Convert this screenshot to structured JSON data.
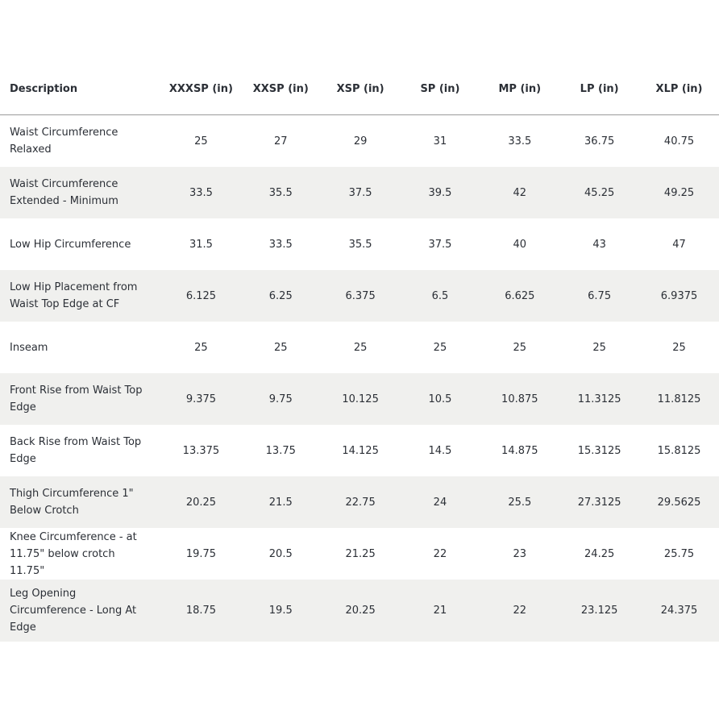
{
  "table": {
    "header": [
      "Description",
      "XXXSP (in)",
      "XXSP (in)",
      "XSP (in)",
      "SP (in)",
      "MP (in)",
      "LP (in)",
      "XLP (in)"
    ],
    "rows": [
      [
        "Waist Circumference Relaxed",
        "25",
        "27",
        "29",
        "31",
        "33.5",
        "36.75",
        "40.75"
      ],
      [
        "Waist Circumference Extended - Minimum",
        "33.5",
        "35.5",
        "37.5",
        "39.5",
        "42",
        "45.25",
        "49.25"
      ],
      [
        "Low Hip Circumference",
        "31.5",
        "33.5",
        "35.5",
        "37.5",
        "40",
        "43",
        "47"
      ],
      [
        "Low Hip Placement from Waist Top Edge at CF",
        "6.125",
        "6.25",
        "6.375",
        "6.5",
        "6.625",
        "6.75",
        "6.9375"
      ],
      [
        "Inseam",
        "25",
        "25",
        "25",
        "25",
        "25",
        "25",
        "25"
      ],
      [
        "Front Rise from Waist Top Edge",
        "9.375",
        "9.75",
        "10.125",
        "10.5",
        "10.875",
        "11.3125",
        "11.8125"
      ],
      [
        "Back Rise from Waist Top Edge",
        "13.375",
        "13.75",
        "14.125",
        "14.5",
        "14.875",
        "15.3125",
        "15.8125"
      ],
      [
        "Thigh Circumference 1\" Below Crotch",
        "20.25",
        "21.5",
        "22.75",
        "24",
        "25.5",
        "27.3125",
        "29.5625"
      ],
      [
        "Knee Circumference - at 11.75\" below crotch 11.75\"",
        "19.75",
        "20.5",
        "21.25",
        "22",
        "23",
        "24.25",
        "25.75"
      ],
      [
        "Leg Opening Circumference - Long At Edge",
        "18.75",
        "19.5",
        "20.25",
        "21",
        "22",
        "23.125",
        "24.375"
      ]
    ]
  }
}
